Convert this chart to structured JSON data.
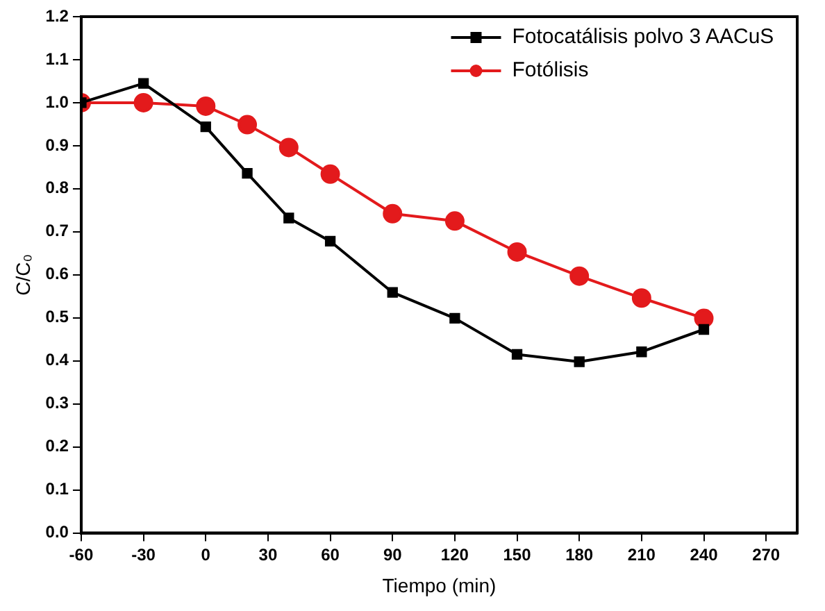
{
  "chart_data": {
    "type": "line",
    "xlabel": "Tiempo (min)",
    "ylabel": "C/C₀",
    "xlim": [
      -60,
      285
    ],
    "xticks": [
      -60,
      -30,
      0,
      30,
      60,
      90,
      120,
      150,
      180,
      210,
      240,
      270
    ],
    "ylim": [
      0,
      1.2
    ],
    "yticks": [
      {
        "value": 0,
        "label": "0.0"
      },
      0.1,
      0.2,
      0.3,
      0.4,
      0.5,
      0.6,
      0.7,
      0.8,
      0.9,
      {
        "value": 1,
        "label": "1.0"
      },
      1.1,
      1.2
    ],
    "x": [
      -60,
      -30,
      0,
      20,
      40,
      60,
      90,
      120,
      150,
      180,
      210,
      240
    ],
    "series": [
      {
        "name": "Fotocatálisis polvo 3 AACuS",
        "color": "#000000",
        "marker": "square",
        "values": [
          1.0,
          1.045,
          0.944,
          0.836,
          0.732,
          0.678,
          0.559,
          0.499,
          0.415,
          0.398,
          0.421,
          0.473
        ]
      },
      {
        "name": "Fotólisis",
        "color": "#e31a1c",
        "marker": "circle",
        "values": [
          1.0,
          1.0,
          0.992,
          0.949,
          0.896,
          0.834,
          0.742,
          0.725,
          0.653,
          0.597,
          0.546,
          0.499
        ]
      }
    ],
    "legend": "top right",
    "grid": false,
    "line_style": "solid"
  }
}
